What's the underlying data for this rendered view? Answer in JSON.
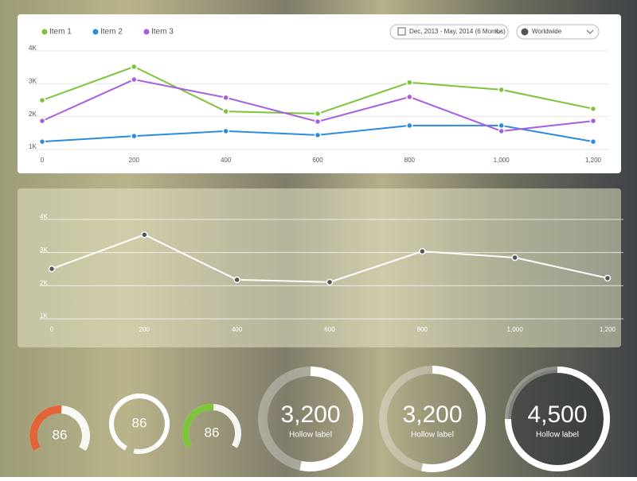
{
  "filters": {
    "date_range": "Dec, 2013 - May, 2014 (6 Months)",
    "region": "Worldwide"
  },
  "chart_data": [
    {
      "type": "line",
      "x": [
        0,
        200,
        400,
        600,
        800,
        1000,
        1200
      ],
      "xlim": [
        0,
        1200
      ],
      "xticks": [
        0,
        200,
        400,
        600,
        800,
        {
          "value": 1000,
          "label": "1,000"
        },
        {
          "value": 1200,
          "label": "1,200"
        }
      ],
      "ylim": [
        1000,
        4000
      ],
      "yticks": [
        {
          "value": 1000,
          "label": "1K"
        },
        {
          "value": 2000,
          "label": "2K"
        },
        {
          "value": 3000,
          "label": "3K"
        },
        {
          "value": 4000,
          "label": "4K"
        }
      ],
      "grid": true,
      "series": [
        {
          "name": "Item 1",
          "color": "#7cc43a",
          "values": [
            2450,
            3470,
            2110,
            2040,
            2990,
            2770,
            2190
          ]
        },
        {
          "name": "Item 2",
          "color": "#2a8ce0",
          "values": [
            1190,
            1360,
            1510,
            1390,
            1680,
            1680,
            1190
          ]
        },
        {
          "name": "Item 3",
          "color": "#a85de0",
          "values": [
            1820,
            3080,
            2530,
            1800,
            2550,
            1510,
            1820
          ]
        }
      ]
    },
    {
      "type": "line",
      "x": [
        0,
        200,
        400,
        600,
        800,
        1000,
        1200
      ],
      "xlim": [
        0,
        1200
      ],
      "xticks": [
        0,
        200,
        400,
        600,
        800,
        {
          "value": 1000,
          "label": "1,000"
        },
        {
          "value": 1200,
          "label": "1,200"
        }
      ],
      "ylim": [
        1000,
        4000
      ],
      "yticks": [
        {
          "value": 1000,
          "label": "1K"
        },
        {
          "value": 2000,
          "label": "2K"
        },
        {
          "value": 3000,
          "label": "3K"
        },
        {
          "value": 4000,
          "label": "4K"
        }
      ],
      "grid": true,
      "series": [
        {
          "color": "#ffffff",
          "values": [
            2460,
            3490,
            2130,
            2060,
            2990,
            2800,
            2180
          ]
        }
      ]
    },
    {
      "type": "gauge",
      "ylim": [
        0,
        100
      ],
      "values": [
        86,
        86,
        86
      ],
      "colors": [
        "#e0663a",
        "#ffffff",
        "#7cc43a"
      ]
    },
    {
      "type": "donut",
      "ylim": [
        0,
        6000
      ],
      "values": [
        3200,
        3200,
        4500
      ],
      "value_labels": [
        "3,200",
        "3,200",
        "4,500"
      ],
      "labels": [
        "Hollow label",
        "Hollow label",
        "Hollow label"
      ],
      "color": "#ffffff"
    }
  ]
}
